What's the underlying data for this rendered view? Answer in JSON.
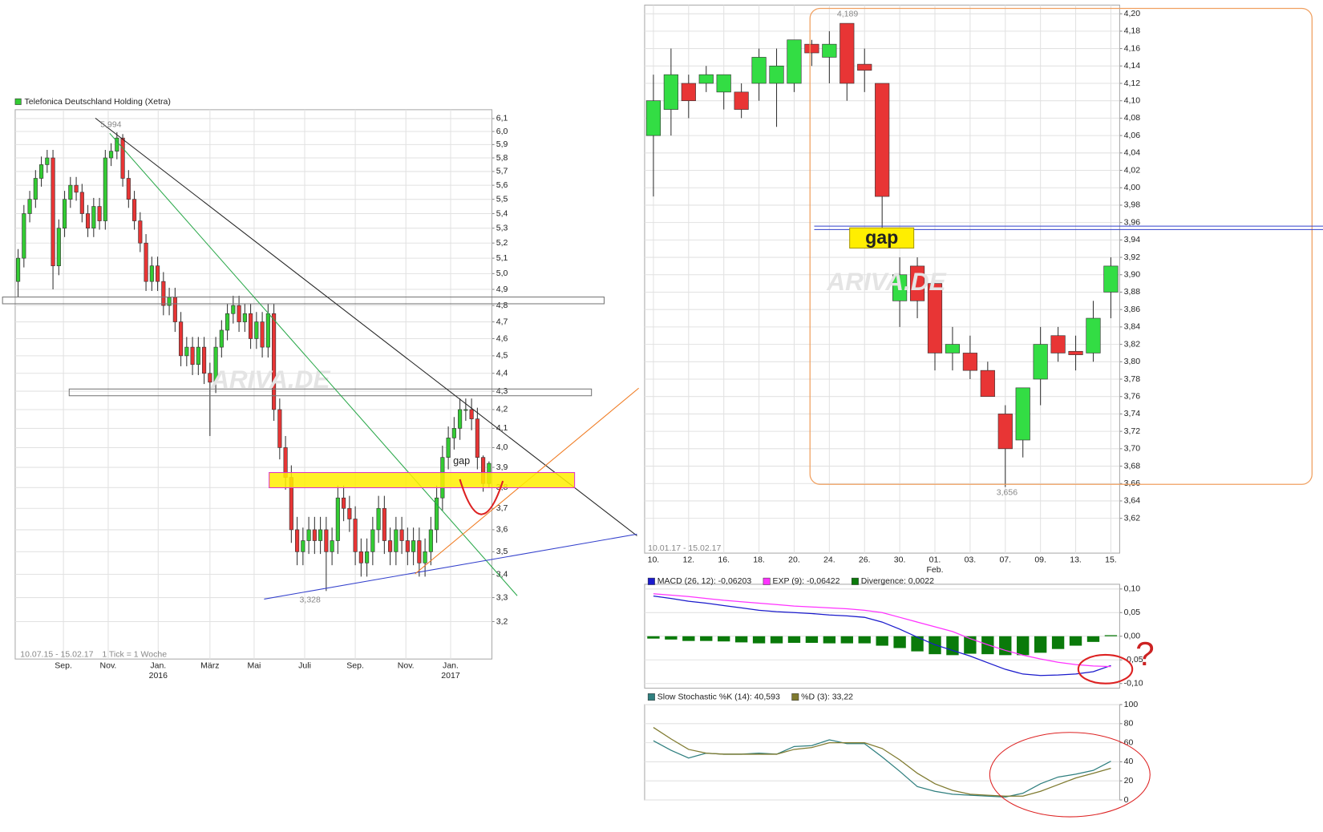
{
  "chart_data": [
    {
      "type": "candlestick",
      "name": "Telefonica Deutschland Holding (Xetra)",
      "log_scale": true,
      "grid": true,
      "up_color": "#33cc33",
      "down_color": "#e83535",
      "xlim": [
        -0.5,
        81.5
      ],
      "ylim": [
        3.05,
        6.17
      ],
      "xticks": [
        {
          "value": 7.8,
          "label": "Sep."
        },
        {
          "value": 15.5,
          "label": "Nov."
        },
        {
          "value": 24.1,
          "label": "Jan."
        },
        {
          "value": 33,
          "label": "März"
        },
        {
          "value": 40.6,
          "label": "Mai"
        },
        {
          "value": 49.3,
          "label": "Juli"
        },
        {
          "value": 58,
          "label": "Sep."
        },
        {
          "value": 66.7,
          "label": "Nov."
        },
        {
          "value": 74.4,
          "label": "Jan."
        }
      ],
      "xsublabels": [
        {
          "value": 24.1,
          "label": "2016"
        },
        {
          "value": 74.4,
          "label": "2017"
        }
      ],
      "yticks": [
        {
          "value": 6.1,
          "label": "6,1"
        },
        {
          "value": 6.0,
          "label": "6,0"
        },
        {
          "value": 5.9,
          "label": "5,9"
        },
        {
          "value": 5.8,
          "label": "5,8"
        },
        {
          "value": 5.7,
          "label": "5,7"
        },
        {
          "value": 5.6,
          "label": "5,6"
        },
        {
          "value": 5.5,
          "label": "5,5"
        },
        {
          "value": 5.4,
          "label": "5,4"
        },
        {
          "value": 5.3,
          "label": "5,3"
        },
        {
          "value": 5.2,
          "label": "5,2"
        },
        {
          "value": 5.1,
          "label": "5,1"
        },
        {
          "value": 5.0,
          "label": "5,0"
        },
        {
          "value": 4.9,
          "label": "4,9"
        },
        {
          "value": 4.8,
          "label": "4,8"
        },
        {
          "value": 4.7,
          "label": "4,7"
        },
        {
          "value": 4.6,
          "label": "4,6"
        },
        {
          "value": 4.5,
          "label": "4,5"
        },
        {
          "value": 4.4,
          "label": "4,4"
        },
        {
          "value": 4.3,
          "label": "4,3"
        },
        {
          "value": 4.2,
          "label": "4,2"
        },
        {
          "value": 4.1,
          "label": "4,1"
        },
        {
          "value": 4.0,
          "label": "4,0"
        },
        {
          "value": 3.9,
          "label": "3,9"
        },
        {
          "value": 3.8,
          "label": "3,8"
        },
        {
          "value": 3.7,
          "label": "3,7"
        },
        {
          "value": 3.6,
          "label": "3,6"
        },
        {
          "value": 3.5,
          "label": "3,5"
        },
        {
          "value": 3.4,
          "label": "3,4"
        },
        {
          "value": 3.3,
          "label": "3,3"
        },
        {
          "value": 3.2,
          "label": "3,2"
        }
      ],
      "open": [
        4.95,
        5.1,
        5.4,
        5.5,
        5.65,
        5.75,
        5.8,
        5.05,
        5.3,
        5.5,
        5.6,
        5.55,
        5.4,
        5.3,
        5.45,
        5.35,
        5.8,
        5.85,
        5.95,
        5.65,
        5.5,
        5.35,
        5.2,
        4.95,
        5.05,
        4.95,
        4.8,
        4.85,
        4.7,
        4.5,
        4.55,
        4.45,
        4.55,
        4.4,
        4.35,
        4.55,
        4.65,
        4.75,
        4.8,
        4.7,
        4.75,
        4.6,
        4.7,
        4.55,
        4.75,
        4.2,
        4.0,
        3.85,
        3.6,
        3.5,
        3.55,
        3.6,
        3.55,
        3.6,
        3.5,
        3.55,
        3.75,
        3.7,
        3.65,
        3.5,
        3.45,
        3.5,
        3.6,
        3.7,
        3.55,
        3.5,
        3.6,
        3.55,
        3.5,
        3.55,
        3.45,
        3.5,
        3.6,
        3.75,
        3.95,
        4.05,
        4.1,
        4.2,
        4.2,
        4.15,
        3.95,
        3.82
      ],
      "high": [
        5.16,
        5.46,
        5.56,
        5.71,
        5.81,
        5.86,
        5.86,
        5.36,
        5.56,
        5.66,
        5.66,
        5.61,
        5.46,
        5.51,
        5.51,
        5.86,
        5.91,
        5.994,
        5.98,
        5.71,
        5.56,
        5.41,
        5.26,
        5.11,
        5.11,
        5.01,
        4.91,
        4.91,
        4.76,
        4.61,
        4.61,
        4.61,
        4.61,
        4.46,
        4.61,
        4.71,
        4.81,
        4.86,
        4.86,
        4.81,
        4.81,
        4.76,
        4.76,
        4.81,
        4.81,
        4.26,
        4.06,
        3.91,
        3.66,
        3.61,
        3.66,
        3.66,
        3.66,
        3.66,
        3.61,
        3.81,
        3.81,
        3.76,
        3.71,
        3.56,
        3.56,
        3.66,
        3.76,
        3.76,
        3.61,
        3.66,
        3.66,
        3.61,
        3.61,
        3.61,
        3.56,
        3.66,
        3.81,
        4.01,
        4.11,
        4.16,
        4.26,
        4.26,
        4.26,
        4.21,
        3.96,
        3.93
      ],
      "low": [
        4.85,
        5.04,
        5.34,
        5.44,
        5.59,
        5.69,
        4.9,
        4.99,
        5.24,
        5.44,
        5.49,
        5.34,
        5.24,
        5.24,
        5.29,
        5.29,
        5.74,
        5.79,
        5.59,
        5.44,
        5.29,
        5.14,
        4.89,
        4.89,
        4.89,
        4.74,
        4.74,
        4.64,
        4.44,
        4.44,
        4.39,
        4.39,
        4.34,
        4.06,
        4.29,
        4.49,
        4.59,
        4.69,
        4.64,
        4.64,
        4.54,
        4.54,
        4.49,
        4.49,
        4.14,
        3.94,
        3.79,
        3.54,
        3.44,
        3.44,
        3.49,
        3.49,
        3.49,
        3.328,
        3.44,
        3.49,
        3.64,
        3.59,
        3.44,
        3.39,
        3.39,
        3.44,
        3.54,
        3.49,
        3.44,
        3.44,
        3.49,
        3.44,
        3.44,
        3.39,
        3.39,
        3.44,
        3.54,
        3.69,
        3.89,
        3.99,
        4.04,
        4.14,
        4.09,
        3.89,
        3.78,
        3.8
      ],
      "close": [
        5.1,
        5.4,
        5.5,
        5.65,
        5.75,
        5.8,
        5.05,
        5.3,
        5.5,
        5.6,
        5.55,
        5.4,
        5.3,
        5.45,
        5.35,
        5.8,
        5.85,
        5.95,
        5.65,
        5.5,
        5.35,
        5.2,
        4.95,
        5.05,
        4.95,
        4.8,
        4.85,
        4.7,
        4.5,
        4.55,
        4.45,
        4.55,
        4.4,
        4.35,
        4.55,
        4.65,
        4.75,
        4.8,
        4.7,
        4.75,
        4.6,
        4.7,
        4.55,
        4.75,
        4.2,
        4.0,
        3.85,
        3.6,
        3.5,
        3.55,
        3.6,
        3.55,
        3.6,
        3.5,
        3.55,
        3.75,
        3.7,
        3.65,
        3.5,
        3.45,
        3.5,
        3.6,
        3.7,
        3.55,
        3.5,
        3.6,
        3.55,
        3.5,
        3.55,
        3.45,
        3.5,
        3.6,
        3.75,
        3.95,
        4.05,
        4.1,
        4.2,
        4.2,
        4.15,
        3.95,
        3.82,
        3.92
      ],
      "annotations": [
        "5,994",
        "3,328",
        "gap",
        "10.07.15 - 15.02.17",
        "1 Tick = 1 Woche"
      ],
      "watermark": "ARIVA.DE"
    },
    {
      "type": "candlestick",
      "log_scale": false,
      "grid": true,
      "up_color": "#33dd44",
      "down_color": "#e83535",
      "xlim": [
        -0.5,
        26.5
      ],
      "ylim": [
        3.58,
        4.21
      ],
      "xticks": [
        {
          "value": 0,
          "label": "10."
        },
        {
          "value": 2,
          "label": "12."
        },
        {
          "value": 4,
          "label": "16."
        },
        {
          "value": 6,
          "label": "18."
        },
        {
          "value": 8,
          "label": "20."
        },
        {
          "value": 10,
          "label": "24."
        },
        {
          "value": 12,
          "label": "26."
        },
        {
          "value": 14,
          "label": "30."
        },
        {
          "value": 16,
          "label": "01."
        },
        {
          "value": 18,
          "label": "03."
        },
        {
          "value": 20,
          "label": "07."
        },
        {
          "value": 22,
          "label": "09."
        },
        {
          "value": 24,
          "label": "13."
        },
        {
          "value": 26,
          "label": "15."
        }
      ],
      "xsublabels": [
        {
          "value": 16,
          "label": "Feb."
        }
      ],
      "yticks": [
        {
          "value": 4.2,
          "label": "4,20"
        },
        {
          "value": 4.18,
          "label": "4,18"
        },
        {
          "value": 4.16,
          "label": "4,16"
        },
        {
          "value": 4.14,
          "label": "4,14"
        },
        {
          "value": 4.12,
          "label": "4,12"
        },
        {
          "value": 4.1,
          "label": "4,10"
        },
        {
          "value": 4.08,
          "label": "4,08"
        },
        {
          "value": 4.06,
          "label": "4,06"
        },
        {
          "value": 4.04,
          "label": "4,04"
        },
        {
          "value": 4.02,
          "label": "4,02"
        },
        {
          "value": 4.0,
          "label": "4,00"
        },
        {
          "value": 3.98,
          "label": "3,98"
        },
        {
          "value": 3.96,
          "label": "3,96"
        },
        {
          "value": 3.94,
          "label": "3,94"
        },
        {
          "value": 3.92,
          "label": "3,92"
        },
        {
          "value": 3.9,
          "label": "3,90"
        },
        {
          "value": 3.88,
          "label": "3,88"
        },
        {
          "value": 3.86,
          "label": "3,86"
        },
        {
          "value": 3.84,
          "label": "3,84"
        },
        {
          "value": 3.82,
          "label": "3,82"
        },
        {
          "value": 3.8,
          "label": "3,80"
        },
        {
          "value": 3.78,
          "label": "3,78"
        },
        {
          "value": 3.76,
          "label": "3,76"
        },
        {
          "value": 3.74,
          "label": "3,74"
        },
        {
          "value": 3.72,
          "label": "3,72"
        },
        {
          "value": 3.7,
          "label": "3,70"
        },
        {
          "value": 3.68,
          "label": "3,68"
        },
        {
          "value": 3.66,
          "label": "3,66"
        },
        {
          "value": 3.64,
          "label": "3,64"
        },
        {
          "value": 3.62,
          "label": "3,62"
        }
      ],
      "open": [
        4.06,
        4.09,
        4.12,
        4.12,
        4.11,
        4.11,
        4.12,
        4.12,
        4.12,
        4.165,
        4.15,
        4.189,
        4.142,
        4.12,
        3.87,
        3.91,
        3.89,
        3.81,
        3.81,
        3.79,
        3.74,
        3.71,
        3.78,
        3.83,
        3.812,
        3.81,
        3.88
      ],
      "high": [
        4.13,
        4.16,
        4.13,
        4.14,
        4.13,
        4.12,
        4.16,
        4.16,
        4.17,
        4.17,
        4.18,
        4.189,
        4.16,
        4.12,
        3.92,
        3.92,
        3.89,
        3.84,
        3.83,
        3.8,
        3.75,
        3.77,
        3.84,
        3.84,
        3.83,
        3.87,
        3.92
      ],
      "low": [
        3.99,
        4.06,
        4.08,
        4.11,
        4.09,
        4.08,
        4.1,
        4.07,
        4.11,
        4.14,
        4.12,
        4.1,
        4.11,
        3.94,
        3.84,
        3.85,
        3.79,
        3.79,
        3.78,
        3.76,
        3.656,
        3.69,
        3.75,
        3.8,
        3.79,
        3.8,
        3.85
      ],
      "close": [
        4.1,
        4.13,
        4.1,
        4.13,
        4.13,
        4.09,
        4.15,
        4.14,
        4.17,
        4.155,
        4.165,
        4.12,
        4.135,
        3.99,
        3.9,
        3.87,
        3.81,
        3.82,
        3.79,
        3.76,
        3.7,
        3.77,
        3.82,
        3.81,
        3.808,
        3.85,
        3.91
      ],
      "annotations": [
        "4,189",
        "3,656",
        "gap",
        "10.01.17 - 15.02.17"
      ],
      "watermark": "ARIVA.DE"
    },
    {
      "type": "combo",
      "grid": true,
      "xlim": [
        -0.5,
        26.5
      ],
      "ylim": [
        -0.11,
        0.11
      ],
      "yticks": [
        {
          "value": 0.1,
          "label": "0,10"
        },
        {
          "value": 0.05,
          "label": "0,05"
        },
        {
          "value": 0,
          "label": "0,00"
        },
        {
          "value": -0.05,
          "label": "-0,05"
        },
        {
          "value": -0.1,
          "label": "-0,10"
        }
      ],
      "series": [
        {
          "name": "MACD (26, 12): -0,06203",
          "type": "line",
          "color": "#1a1acc",
          "values": [
            0.085,
            0.08,
            0.074,
            0.07,
            0.065,
            0.06,
            0.055,
            0.052,
            0.05,
            0.048,
            0.045,
            0.043,
            0.04,
            0.03,
            0.015,
            -0.002,
            -0.018,
            -0.03,
            -0.042,
            -0.056,
            -0.07,
            -0.08,
            -0.083,
            -0.082,
            -0.08,
            -0.075,
            -0.06203
          ]
        },
        {
          "name": "EXP (9): -0,06422",
          "type": "line",
          "color": "#ff33ff",
          "values": [
            0.09,
            0.087,
            0.084,
            0.08,
            0.076,
            0.073,
            0.07,
            0.067,
            0.064,
            0.062,
            0.06,
            0.058,
            0.055,
            0.05,
            0.04,
            0.03,
            0.02,
            0.01,
            -0.005,
            -0.018,
            -0.03,
            -0.04,
            -0.048,
            -0.055,
            -0.06,
            -0.063,
            -0.06422
          ]
        },
        {
          "name": "Divergence: 0,0022",
          "type": "bar",
          "color": "#0a7a0a",
          "values": [
            -0.005,
            -0.007,
            -0.01,
            -0.01,
            -0.011,
            -0.013,
            -0.015,
            -0.015,
            -0.014,
            -0.014,
            -0.015,
            -0.015,
            -0.015,
            -0.02,
            -0.025,
            -0.032,
            -0.038,
            -0.04,
            -0.037,
            -0.038,
            -0.04,
            -0.04,
            -0.035,
            -0.027,
            -0.02,
            -0.012,
            0.0022
          ]
        }
      ],
      "annotations": [
        "?"
      ]
    },
    {
      "type": "line",
      "grid": true,
      "xlim": [
        -0.5,
        26.5
      ],
      "ylim": [
        0,
        100
      ],
      "yticks": [
        0,
        20,
        40,
        60,
        80,
        100
      ],
      "series": [
        {
          "name": "Slow Stochastic %K (14): 40,593",
          "color": "#2f7f7f",
          "values": [
            62,
            52,
            44,
            49,
            48,
            48,
            49,
            48,
            56,
            57,
            63,
            59,
            59,
            45,
            30,
            14,
            9,
            6,
            5,
            4,
            3,
            7,
            17,
            24,
            27,
            31,
            40.593
          ]
        },
        {
          "name": "%D (3): 33,22",
          "color": "#7f7a2f",
          "values": [
            76,
            64,
            53,
            49,
            48,
            48,
            48,
            48,
            53,
            55,
            60,
            60,
            60,
            54,
            42,
            28,
            17,
            10,
            6,
            5,
            4,
            4,
            9,
            16,
            23,
            28,
            33.22
          ]
        }
      ]
    }
  ]
}
